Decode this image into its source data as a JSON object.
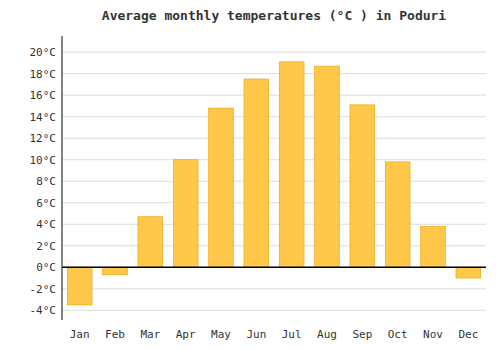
{
  "chart_data": {
    "type": "bar",
    "title": "Average monthly temperatures (°C ) in Poduri",
    "categories": [
      "Jan",
      "Feb",
      "Mar",
      "Apr",
      "May",
      "Jun",
      "Jul",
      "Aug",
      "Sep",
      "Oct",
      "Nov",
      "Dec"
    ],
    "values": [
      -3.5,
      -0.7,
      4.7,
      10.0,
      14.8,
      17.5,
      19.1,
      18.7,
      15.1,
      9.8,
      3.8,
      -1.0
    ],
    "color": "#FFC84A",
    "ylim": [
      -4.9,
      21.5
    ],
    "yticks": [
      {
        "value": -4,
        "label": "-4°C"
      },
      {
        "value": -2,
        "label": "-2°C"
      },
      {
        "value": 0,
        "label": "0°C"
      },
      {
        "value": 2,
        "label": "2°C"
      },
      {
        "value": 4,
        "label": "4°C"
      },
      {
        "value": 6,
        "label": "6°C"
      },
      {
        "value": 8,
        "label": "8°C"
      },
      {
        "value": 10,
        "label": "10°C"
      },
      {
        "value": 12,
        "label": "12°C"
      },
      {
        "value": 14,
        "label": "14°C"
      },
      {
        "value": 16,
        "label": "16°C"
      },
      {
        "value": 18,
        "label": "18°C"
      },
      {
        "value": 20,
        "label": "20°C"
      }
    ],
    "grid": true
  }
}
